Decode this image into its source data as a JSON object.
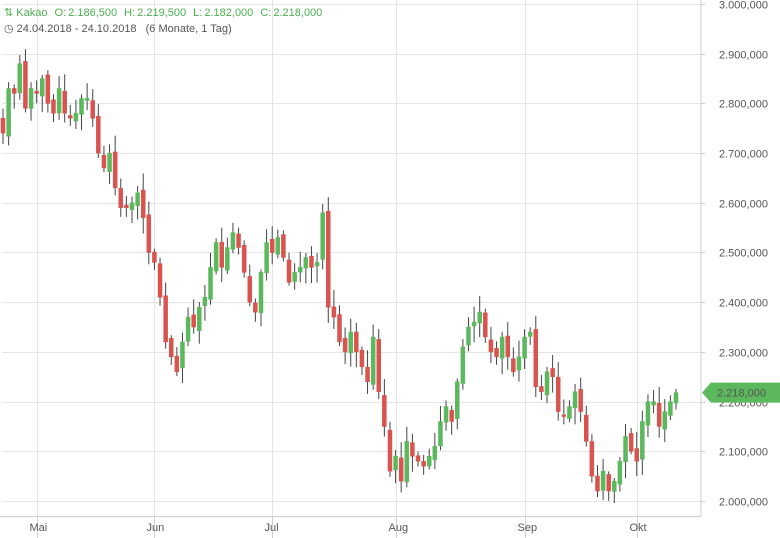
{
  "header": {
    "symbol": "Kakao",
    "open_label": "O:",
    "open": "2.186,500",
    "high_label": "H:",
    "high": "2.219,500",
    "low_label": "L:",
    "low": "2.182,000",
    "close_label": "C:",
    "close": "2.218,000",
    "range": "24.04.2018 - 24.10.2018",
    "period": "(6 Monate, 1 Tag)"
  },
  "colors": {
    "up": "#5cb85c",
    "down": "#d9534f",
    "grid": "#e5e5e5",
    "badge": "#5cb85c"
  },
  "chart_data": {
    "type": "candlestick",
    "ylim": [
      1980000,
      3000000
    ],
    "yticks": [
      {
        "value": 2000000,
        "label": "2.000,000"
      },
      {
        "value": 2100000,
        "label": "2.100,000"
      },
      {
        "value": 2200000,
        "label": "2.200,000"
      },
      {
        "value": 2300000,
        "label": "2.300,000"
      },
      {
        "value": 2400000,
        "label": "2.400,000"
      },
      {
        "value": 2500000,
        "label": "2.500,000"
      },
      {
        "value": 2600000,
        "label": "2.600,000"
      },
      {
        "value": 2700000,
        "label": "2.700,000"
      },
      {
        "value": 2800000,
        "label": "2.800,000"
      },
      {
        "value": 2900000,
        "label": "2.900,000"
      },
      {
        "value": 3000000,
        "label": "3.000,000"
      }
    ],
    "xticks": [
      {
        "index": 6,
        "label": "Mai"
      },
      {
        "index": 27,
        "label": "Jun"
      },
      {
        "index": 48,
        "label": "Jul"
      },
      {
        "index": 70,
        "label": "Aug"
      },
      {
        "index": 93,
        "label": "Sep"
      },
      {
        "index": 113,
        "label": "Okt"
      }
    ],
    "last_value_label": "2.218,000",
    "last_value": 2218000,
    "closes": [
      2740000,
      2830000,
      2820000,
      2880000,
      2790000,
      2830000,
      2820000,
      2850000,
      2800000,
      2780000,
      2830000,
      2780000,
      2770000,
      2780000,
      2810000,
      2810000,
      2770000,
      2700000,
      2670000,
      2700000,
      2630000,
      2590000,
      2590000,
      2600000,
      2620000,
      2570000,
      2500000,
      2480000,
      2410000,
      2320000,
      2290000,
      2260000,
      2320000,
      2370000,
      2350000,
      2390000,
      2410000,
      2470000,
      2520000,
      2470000,
      2510000,
      2540000,
      2510000,
      2460000,
      2400000,
      2380000,
      2460000,
      2520000,
      2500000,
      2530000,
      2490000,
      2440000,
      2460000,
      2470000,
      2490000,
      2470000,
      2480000,
      2580000,
      2390000,
      2370000,
      2320000,
      2300000,
      2340000,
      2300000,
      2270000,
      2240000,
      2330000,
      2220000,
      2150000,
      2060000,
      2090000,
      2040000,
      2120000,
      2090000,
      2080000,
      2070000,
      2090000,
      2110000,
      2160000,
      2190000,
      2160000,
      2240000,
      2310000,
      2350000,
      2360000,
      2380000,
      2330000,
      2300000,
      2290000,
      2330000,
      2290000,
      2260000,
      2290000,
      2330000,
      2340000,
      2230000,
      2220000,
      2260000,
      2250000,
      2180000,
      2170000,
      2190000,
      2220000,
      2180000,
      2120000,
      2050000,
      2020000,
      2060000,
      2020000,
      2040000,
      2080000,
      2130000,
      2100000,
      2080000,
      2160000,
      2200000,
      2200000,
      2150000,
      2180000,
      2200000,
      2218000
    ]
  }
}
